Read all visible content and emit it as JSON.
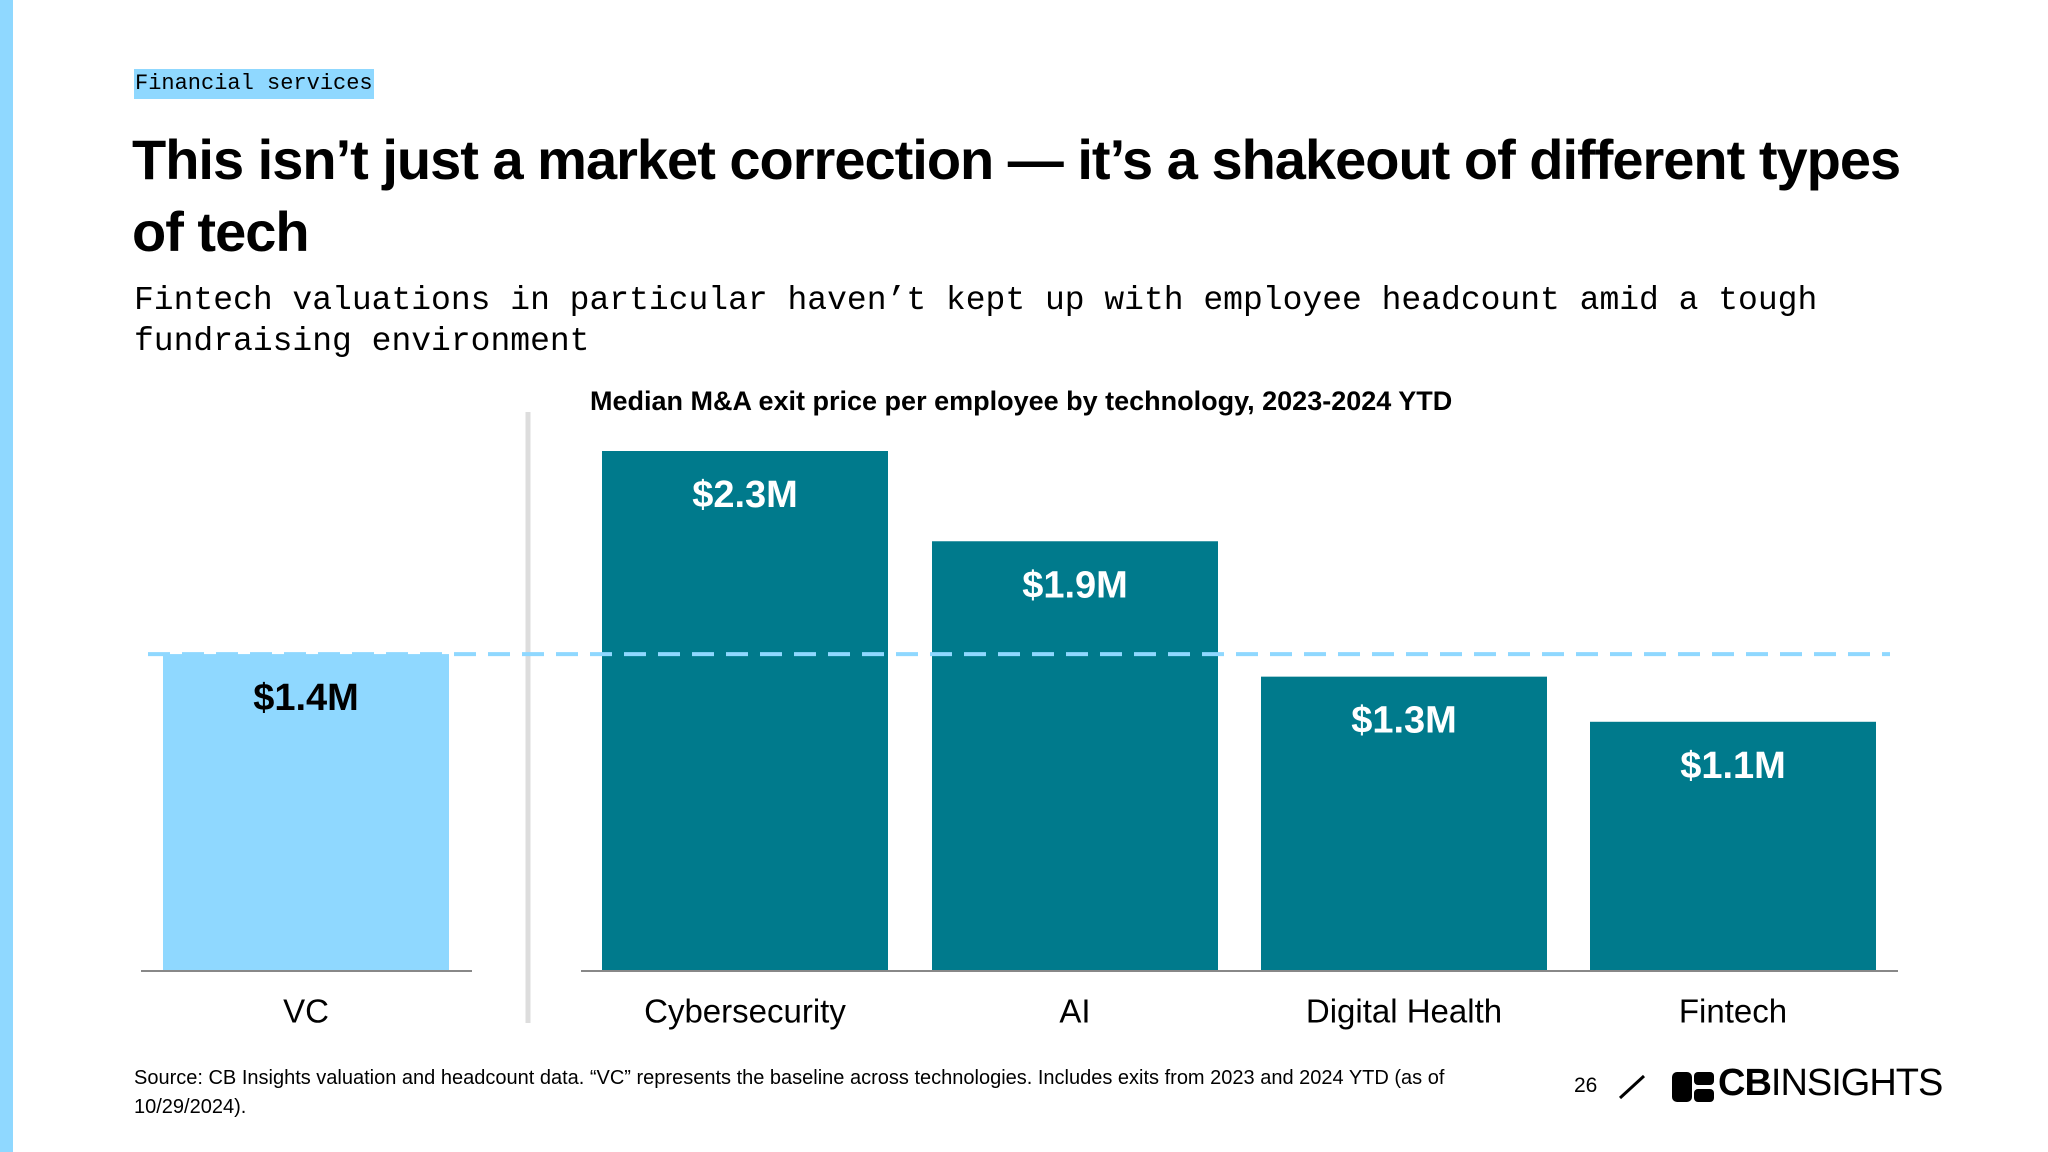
{
  "slide": {
    "tag": "Financial services",
    "headline": "This isn’t just a market correction — it’s a shakeout of different types of tech",
    "subtitle": "Fintech valuations in particular haven’t kept up with employee headcount amid a tough fundraising environment",
    "source": "Source: CB Insights valuation and headcount data. “VC” represents the baseline across technologies. Includes exits from 2023 and 2024 YTD (as of 10/29/2024).",
    "page_number": "26",
    "logo_bold": "CB",
    "logo_light": "INSIGHTS"
  },
  "chart_data": {
    "type": "bar",
    "title": "Median M&A exit price per employee by technology, 2023-2024 YTD",
    "categories": [
      "VC",
      "Cybersecurity",
      "AI",
      "Digital Health",
      "Fintech"
    ],
    "values": [
      1.4,
      2.3,
      1.9,
      1.3,
      1.1
    ],
    "value_labels": [
      "$1.4M",
      "$2.3M",
      "$1.9M",
      "$1.3M",
      "$1.1M"
    ],
    "colors": [
      "#8fd8ff",
      "#007a8c",
      "#007a8c",
      "#007a8c",
      "#007a8c"
    ],
    "label_colors": [
      "#000000",
      "#ffffff",
      "#ffffff",
      "#ffffff",
      "#ffffff"
    ],
    "baseline_color": "#8fd8ff"
  }
}
